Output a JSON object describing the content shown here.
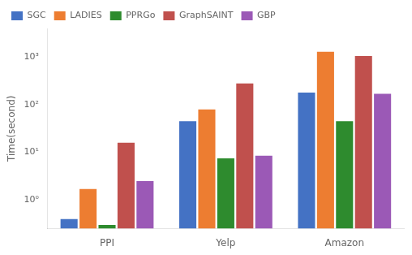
{
  "chart_data": {
    "type": "bar",
    "categories": [
      "PPI",
      "Yelp",
      "Amazon"
    ],
    "series": [
      {
        "name": "SGC",
        "color": "#4472c4",
        "values": [
          0.4,
          45,
          180
        ]
      },
      {
        "name": "LADIES",
        "color": "#ed7d31",
        "values": [
          1.7,
          80,
          1300
        ]
      },
      {
        "name": "PPRGo",
        "color": "#2e8b2e",
        "values": [
          0.3,
          7.5,
          45
        ]
      },
      {
        "name": "GraphSAINT",
        "color": "#c0504d",
        "values": [
          16,
          280,
          1050
        ]
      },
      {
        "name": "GBP",
        "color": "#9b59b6",
        "values": [
          2.5,
          8.5,
          170
        ]
      }
    ],
    "ylabel": "Time(second)",
    "ylim": [
      0.25,
      4000
    ],
    "yticks": [
      {
        "value": 1,
        "label": "10⁰"
      },
      {
        "value": 10,
        "label": "10¹"
      },
      {
        "value": 100,
        "label": "10²"
      },
      {
        "value": 1000,
        "label": "10³"
      }
    ],
    "log": "y",
    "legend": "upper left",
    "grid": false
  }
}
